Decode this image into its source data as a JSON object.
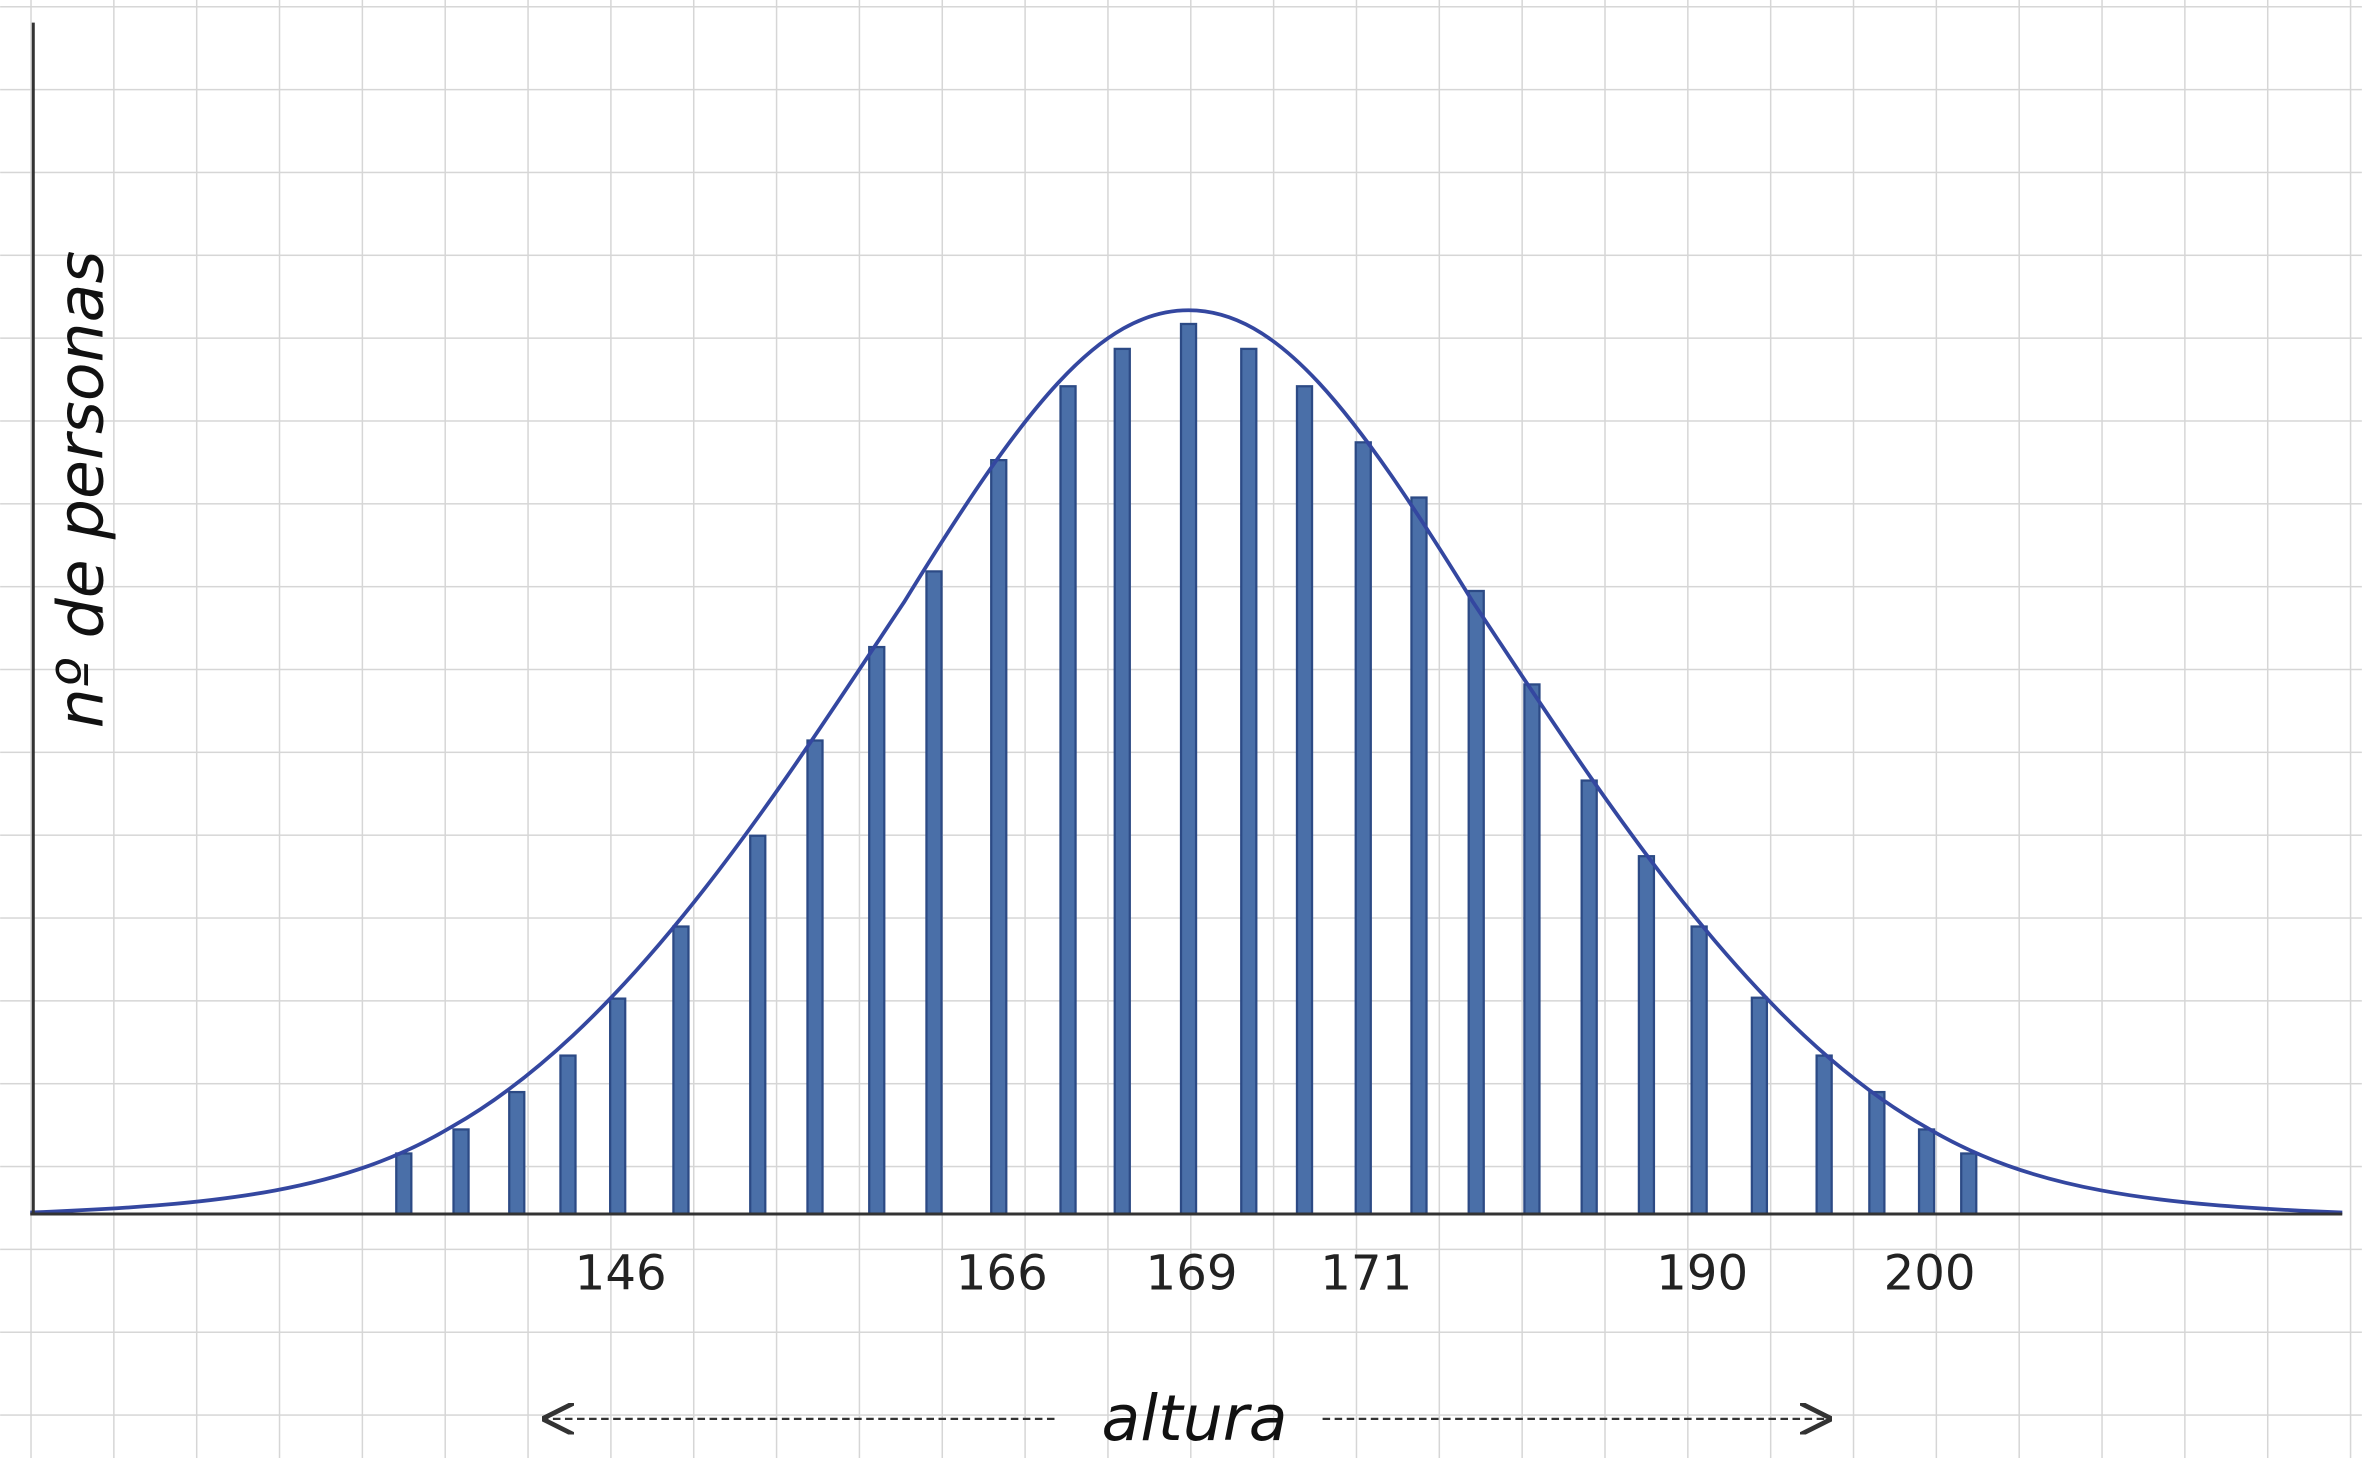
{
  "chart_data": {
    "type": "bar",
    "y_label": "nº de personas",
    "x_label": "altura",
    "categories": [
      null,
      null,
      null,
      null,
      "146",
      null,
      null,
      null,
      null,
      null,
      "166",
      null,
      null,
      "169",
      null,
      null,
      "171",
      null,
      null,
      null,
      null,
      null,
      "190",
      null,
      null,
      null,
      "200",
      null
    ],
    "values": [
      6.8,
      9.5,
      13.7,
      17.8,
      24.2,
      32.3,
      42.5,
      53.2,
      63.7,
      72.2,
      84.7,
      93,
      97.2,
      100,
      97.2,
      93,
      86.7,
      80.5,
      70,
      59.5,
      48.7,
      40.2,
      32.3,
      24.3,
      17.8,
      13.7,
      9.5,
      6.8
    ],
    "color": "#4a6fa8",
    "ylim": [
      0,
      132
    ]
  }
}
